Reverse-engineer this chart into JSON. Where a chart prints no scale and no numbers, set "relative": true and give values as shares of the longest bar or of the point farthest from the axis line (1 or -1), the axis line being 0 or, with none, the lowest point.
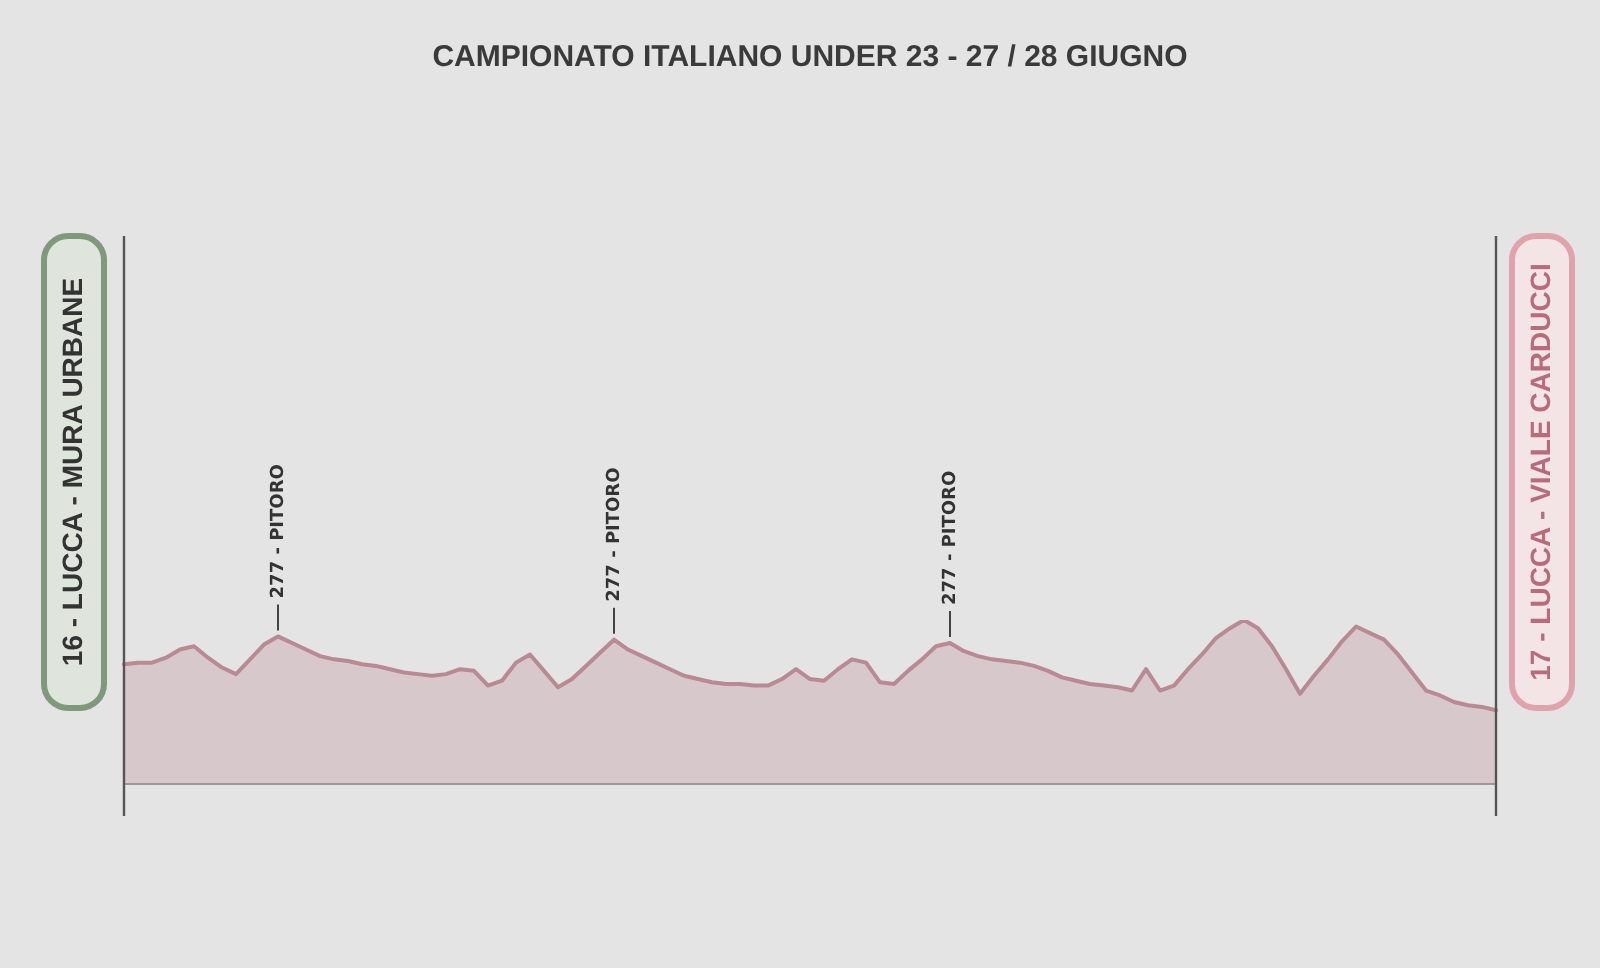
{
  "chart_data": {
    "type": "area",
    "title": "CAMPIONATO ITALIANO UNDER 23 - 27 / 28 GIUGNO",
    "relative": true,
    "categories": [
      null,
      null,
      null,
      null,
      null,
      null,
      null,
      null,
      null,
      null,
      null,
      null,
      null,
      null,
      null,
      null,
      null,
      null,
      null,
      null,
      null,
      null,
      null,
      null,
      null,
      null,
      null,
      null,
      null,
      null,
      null,
      null,
      null,
      null,
      null,
      null,
      null,
      null,
      null,
      null,
      null,
      null,
      null,
      null,
      null,
      null,
      null,
      null,
      null,
      null,
      null,
      null,
      null,
      null,
      null,
      null,
      null,
      null,
      null,
      null,
      null,
      null,
      null,
      null,
      null,
      null,
      null,
      null,
      null,
      null,
      null,
      null,
      null,
      null,
      null,
      null,
      null,
      null,
      null,
      null,
      null,
      null,
      null,
      null,
      null,
      null,
      null,
      null,
      null,
      null,
      null,
      null,
      null,
      null,
      null,
      null,
      null,
      null,
      null
    ],
    "series": [
      {
        "color": "#b98a93",
        "values": [
          0.73,
          0.74,
          0.74,
          0.77,
          0.82,
          0.84,
          0.77,
          0.71,
          0.67,
          0.76,
          0.85,
          0.9,
          0.86,
          0.82,
          0.78,
          0.76,
          0.75,
          0.73,
          0.72,
          0.7,
          0.68,
          0.67,
          0.66,
          0.67,
          0.7,
          0.69,
          0.6,
          0.63,
          0.74,
          0.79,
          0.69,
          0.59,
          0.64,
          0.72,
          0.8,
          0.88,
          0.82,
          0.78,
          0.74,
          0.7,
          0.66,
          0.64,
          0.62,
          0.61,
          0.61,
          0.6,
          0.6,
          0.64,
          0.7,
          0.64,
          0.63,
          0.7,
          0.76,
          0.74,
          0.62,
          0.61,
          0.69,
          0.76,
          0.84,
          0.86,
          0.81,
          0.78,
          0.76,
          0.75,
          0.74,
          0.72,
          0.69,
          0.65,
          0.63,
          0.61,
          0.6,
          0.59,
          0.57,
          0.7,
          0.57,
          0.6,
          0.7,
          0.79,
          0.89,
          0.95,
          1,
          0.95,
          0.84,
          0.7,
          0.55,
          0.66,
          0.76,
          0.87,
          0.96,
          0.92,
          0.88,
          0.79,
          0.68,
          0.57,
          0.54,
          0.5,
          0.48,
          0.47,
          0.45
        ]
      }
    ],
    "annotations": [
      "16 - LUCCA - MURA URBANE",
      {
        "text": "277 - PITORO",
        "y": 0.9
      },
      {
        "text": "277 - PITORO",
        "y": 0.88
      },
      {
        "text": "277 - PITORO",
        "y": 0.86
      },
      "17 - LUCCA - VIALE CARDUCCI"
    ]
  }
}
